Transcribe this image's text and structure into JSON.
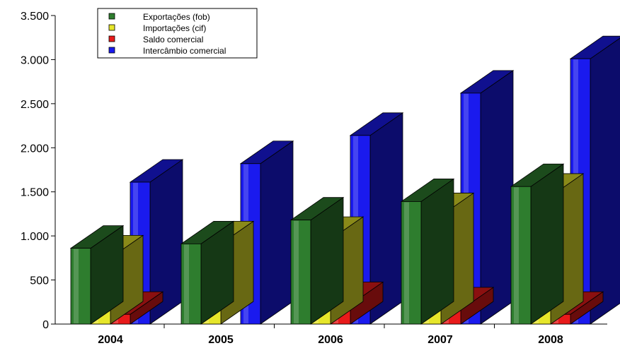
{
  "chart_data": {
    "type": "bar",
    "title": "",
    "xlabel": "",
    "ylabel": "",
    "categories": [
      "2004",
      "2005",
      "2006",
      "2007",
      "2008"
    ],
    "series": [
      {
        "name": "Exportações (fob)",
        "values": [
          860,
          910,
          1180,
          1390,
          1560
        ]
      },
      {
        "name": "Importações (cif)",
        "values": [
          750,
          910,
          960,
          1230,
          1450
        ]
      },
      {
        "name": "Saldo comercial",
        "values": [
          110,
          0,
          220,
          160,
          110
        ]
      },
      {
        "name": "Intercâmbio comercial",
        "values": [
          1610,
          1820,
          2140,
          2620,
          3010
        ]
      }
    ],
    "ylim": [
      0,
      3500
    ],
    "yticks": [
      0,
      500,
      1000,
      1500,
      2000,
      2500,
      3000,
      3500
    ],
    "ytick_labels": [
      "0",
      "500",
      "1.000",
      "1.500",
      "2.000",
      "2.500",
      "3.000",
      "3.500"
    ],
    "legend_position": "top-left",
    "grid": false,
    "colors": {
      "Exportações (fob)": "#2e7d2e",
      "Importações (cif)": "#e6e62a",
      "Saldo comercial": "#e81a1a",
      "Intercâmbio comercial": "#1a1aee"
    },
    "style": "3d-bar"
  }
}
